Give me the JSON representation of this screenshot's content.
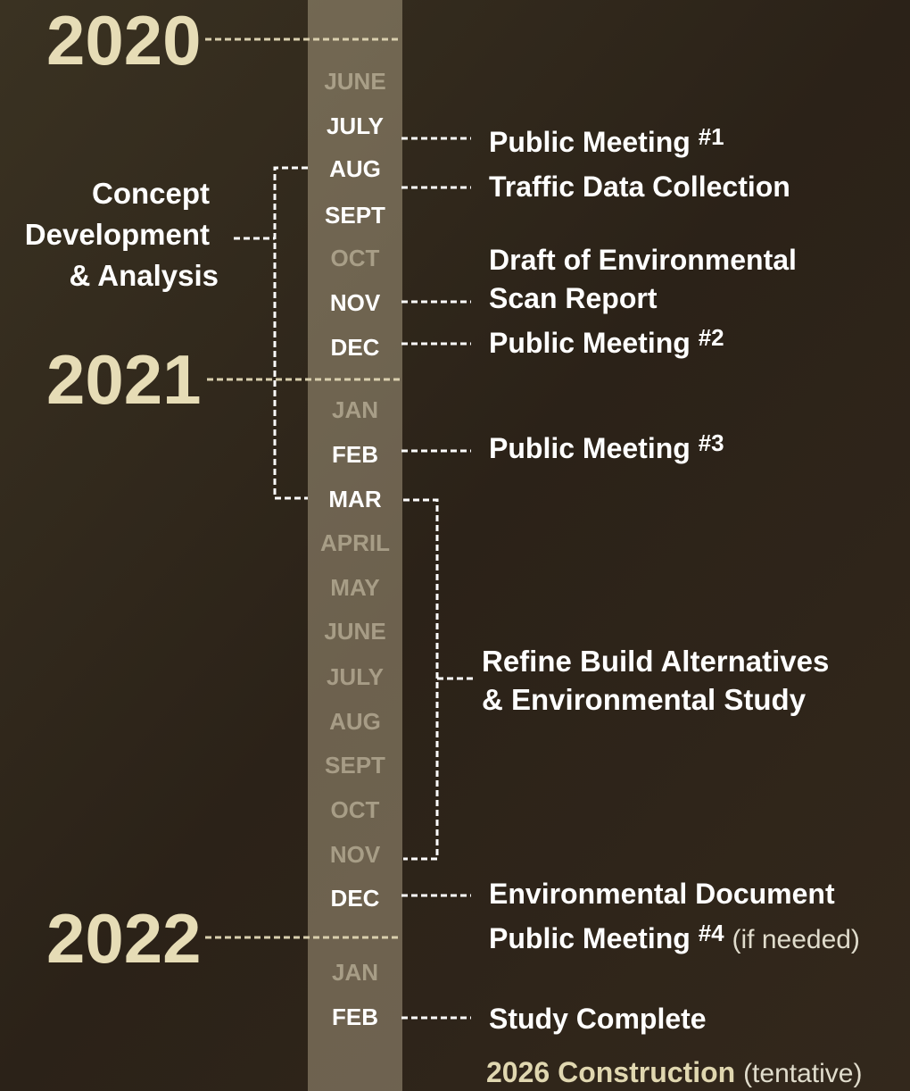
{
  "years": [
    "2020",
    "2021",
    "2022"
  ],
  "months": [
    {
      "name": "JUNE",
      "active": false
    },
    {
      "name": "JULY",
      "active": true
    },
    {
      "name": "AUG",
      "active": true
    },
    {
      "name": "SEPT",
      "active": true
    },
    {
      "name": "OCT",
      "active": false
    },
    {
      "name": "NOV",
      "active": true
    },
    {
      "name": "DEC",
      "active": true
    },
    {
      "name": "JAN",
      "active": false
    },
    {
      "name": "FEB",
      "active": true
    },
    {
      "name": "MAR",
      "active": true
    },
    {
      "name": "APRIL",
      "active": false
    },
    {
      "name": "MAY",
      "active": false
    },
    {
      "name": "JUNE",
      "active": false
    },
    {
      "name": "JULY",
      "active": false
    },
    {
      "name": "AUG",
      "active": false
    },
    {
      "name": "SEPT",
      "active": false
    },
    {
      "name": "OCT",
      "active": false
    },
    {
      "name": "NOV",
      "active": false
    },
    {
      "name": "DEC",
      "active": true
    },
    {
      "name": "JAN",
      "active": false
    },
    {
      "name": "FEB",
      "active": true
    }
  ],
  "phases": [
    {
      "lines": [
        "Concept",
        "Development",
        "& Analysis"
      ]
    },
    {
      "lines": [
        "Refine Build Alternatives",
        "& Environmental Study"
      ]
    }
  ],
  "events": [
    {
      "text": "Public Meeting",
      "number": "#1"
    },
    {
      "text": "Traffic Data Collection"
    },
    {
      "lines": [
        "Draft of Environmental",
        "Scan Report"
      ]
    },
    {
      "text": "Public Meeting",
      "number": "#2"
    },
    {
      "text": "Public Meeting",
      "number": "#3"
    },
    {
      "text": "Environmental Document"
    },
    {
      "text": "Public Meeting",
      "number": "#4",
      "note": "(if needed)"
    },
    {
      "text": "Study Complete"
    },
    {
      "text": "2026 Construction",
      "note": "(tentative)"
    }
  ]
}
